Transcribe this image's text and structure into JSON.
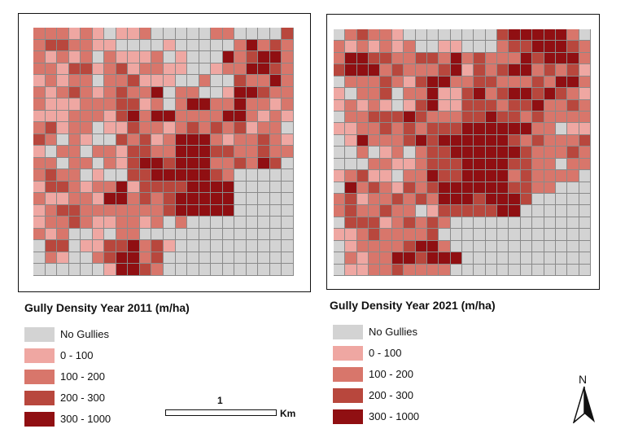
{
  "maps": [
    {
      "title": "Gully Density Year  2011 (m/ha)",
      "legend": [
        {
          "label": "No Gullies",
          "color": "#d3d3d3"
        },
        {
          "label": "0 - 100",
          "color": "#efa7a2"
        },
        {
          "label": "100 - 200",
          "color": "#d8766b"
        },
        {
          "label": "200 - 300",
          "color": "#b8473d"
        },
        {
          "label": "300 - 1000",
          "color": "#900f12"
        }
      ],
      "grid": [
        "2221210112000002200003",
        "2332211000010000024232",
        "2121202111201000423442",
        "2213312312211001224432",
        "1212202231110020032242",
        "2123212322402200144322",
        "2111222331202442242212",
        "1112221342442222442121",
        "2312201132212323231220",
        "3202100323124442122321",
        "1022022133224443322322",
        "2202202134434442232430",
        "2322010033444443200000",
        "1332122413333444400000",
        "2112214423234444400000",
        "1233222222234444400000",
        "1223211221202000000000",
        "2120010220000000000000",
        "0330113342310000000000",
        "0210023442300000000000",
        "0000001443200000000000"
      ]
    },
    {
      "title": "Gully Density Year  2021 (m/ha)",
      "legend": [
        {
          "label": "No Gullies",
          "color": "#d3d3d3"
        },
        {
          "label": "0 - 100",
          "color": "#efa7a2"
        },
        {
          "label": "100 - 200",
          "color": "#d8766b"
        },
        {
          "label": "200 - 300",
          "color": "#b8473d"
        },
        {
          "label": "300 - 1000",
          "color": "#900f12"
        }
      ],
      "grid": [
        "0232210000000034444420",
        "2121212001100023344432",
        "2443322332423222434442",
        "3444232223413234423231",
        "0222321344223322232442",
        "1022302241134234434321",
        "1212101341133323342232",
        "0223334322233433232222",
        "1122323233344444422011",
        "0142223434444443232223",
        "0020120233444444322232",
        "0002211233344443322022",
        "1231102243344442322220",
        "0423213234444443322000",
        "2312232324443444300000",
        "2322322013333344000000",
        "0333123232000000000000",
        "1123222230000000000000",
        "0122223442000000000000",
        "0212244344400000000000",
        "0112232222000000000000"
      ]
    }
  ],
  "scalebar": {
    "value": "1",
    "unit": "Km"
  },
  "north": {
    "label": "N"
  }
}
